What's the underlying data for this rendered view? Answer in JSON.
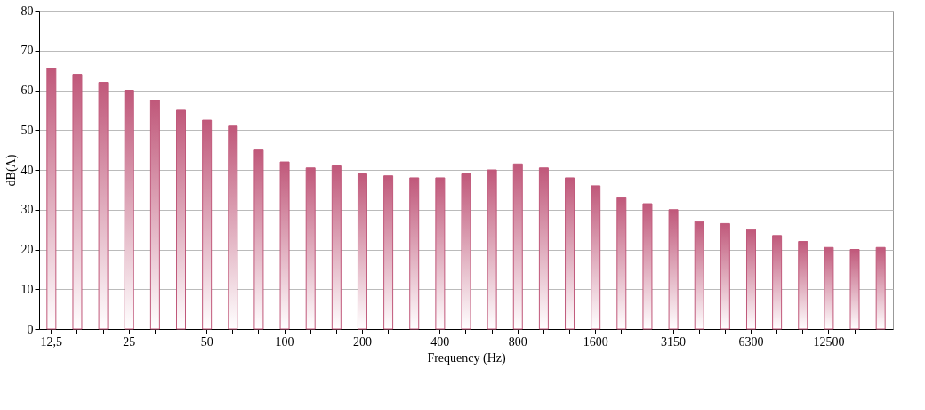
{
  "chart_data": {
    "type": "bar",
    "xlabel": "Frequency (Hz)",
    "ylabel": "dB(A)",
    "categories": [
      "12,5",
      null,
      null,
      "25",
      null,
      null,
      "50",
      null,
      null,
      "100",
      null,
      null,
      "200",
      null,
      null,
      "400",
      null,
      null,
      "800",
      null,
      null,
      "1600",
      null,
      null,
      "3150",
      null,
      null,
      "6300",
      null,
      null,
      "12500",
      null,
      null
    ],
    "values": [
      65.5,
      64,
      62,
      60,
      57.5,
      55,
      52.5,
      51,
      45,
      42,
      40.5,
      41,
      39,
      38.5,
      38,
      38,
      39,
      40,
      41.5,
      40.5,
      38,
      36,
      33,
      31.5,
      30,
      27,
      26.5,
      25,
      23.5,
      22,
      20.5,
      20,
      20.5
    ],
    "color": "#c0587a",
    "ylim": [
      0,
      80
    ],
    "yticks": [
      0,
      10,
      20,
      30,
      40,
      50,
      60,
      70,
      80
    ],
    "grid": "y"
  }
}
